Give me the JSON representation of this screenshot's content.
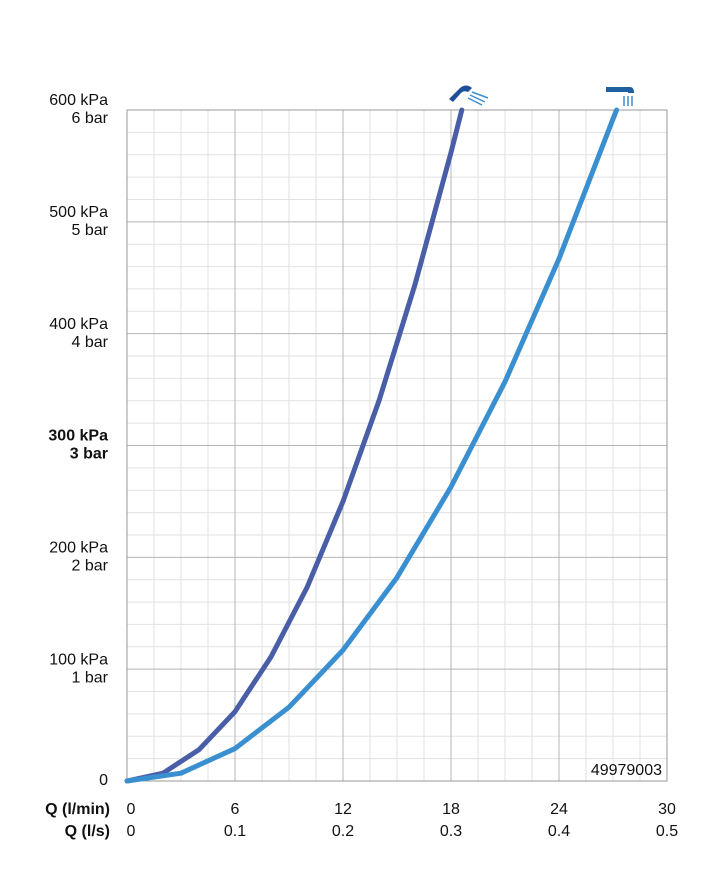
{
  "chart_data": {
    "type": "line",
    "xlabel": "Q (l/min)",
    "x2label": "Q (l/s)",
    "xlim": [
      0,
      30
    ],
    "xticks": [
      0,
      6,
      12,
      18,
      24,
      30
    ],
    "x2lim": [
      0,
      0.5
    ],
    "x2ticks": [
      0,
      0.1,
      0.2,
      0.3,
      0.4,
      0.5
    ],
    "ylim": [
      0,
      600
    ],
    "yticks": [
      0,
      {
        "value": 100,
        "label": "100 kPa"
      },
      {
        "value": 200,
        "label": "200 kPa"
      },
      {
        "value": 300,
        "label": "300 kPa"
      },
      {
        "value": 400,
        "label": "400 kPa"
      },
      {
        "value": 500,
        "label": "500 kPa"
      },
      {
        "value": 600,
        "label": "600 kPa"
      }
    ],
    "yticks_bar": [
      {
        "value": 100,
        "label": "1 bar"
      },
      {
        "value": 200,
        "label": "2 bar"
      },
      {
        "value": 300,
        "label": "3 bar"
      },
      {
        "value": 400,
        "label": "4 bar"
      },
      {
        "value": 500,
        "label": "5 bar"
      },
      {
        "value": 600,
        "label": "6 bar"
      }
    ],
    "emphasized_ytick": 300,
    "grid": true,
    "annotation": "49979003",
    "series": [
      {
        "color": "#4a5ea8",
        "x": [
          0,
          2,
          4,
          6,
          8,
          10,
          12,
          14,
          16,
          18,
          18.6
        ],
        "values": [
          0,
          7,
          28,
          62,
          111,
          173,
          250,
          340,
          444,
          562,
          600
        ]
      },
      {
        "color": "#3a8fd0",
        "x": [
          0,
          3,
          6,
          9,
          12,
          15,
          18,
          21,
          24,
          27,
          27.2
        ],
        "values": [
          0,
          7,
          29,
          66,
          117,
          182,
          263,
          357,
          467,
          592,
          600
        ]
      }
    ]
  }
}
